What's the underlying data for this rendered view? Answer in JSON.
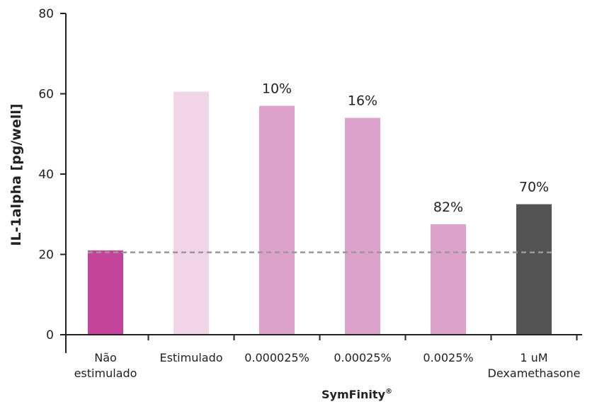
{
  "chart_data": {
    "type": "bar",
    "title": "",
    "xlabel": "SymFinity",
    "xlabel_mark": "®",
    "ylabel": "IL-1alpha [pg/well]",
    "ylim": [
      0,
      80
    ],
    "yticks": [
      0,
      20,
      40,
      60,
      80
    ],
    "grid": false,
    "categories": [
      [
        "Não",
        "estimulado"
      ],
      [
        "Estimulado"
      ],
      [
        "0.000025%"
      ],
      [
        "0.00025%"
      ],
      [
        "0.0025%"
      ],
      [
        "1 uM",
        "Dexamethasone"
      ]
    ],
    "values": [
      21,
      60.5,
      57,
      54,
      27.5,
      32.5
    ],
    "bar_labels": [
      "",
      "",
      "10%",
      "16%",
      "82%",
      "70%"
    ],
    "bar_colors": [
      "#c3449a",
      "#f0d5e6",
      "#dda2c9",
      "#dda2c9",
      "#dda2c9",
      "#545456"
    ],
    "reference_line": {
      "value": 20.5,
      "style": "dashed",
      "color": "#999999"
    }
  }
}
